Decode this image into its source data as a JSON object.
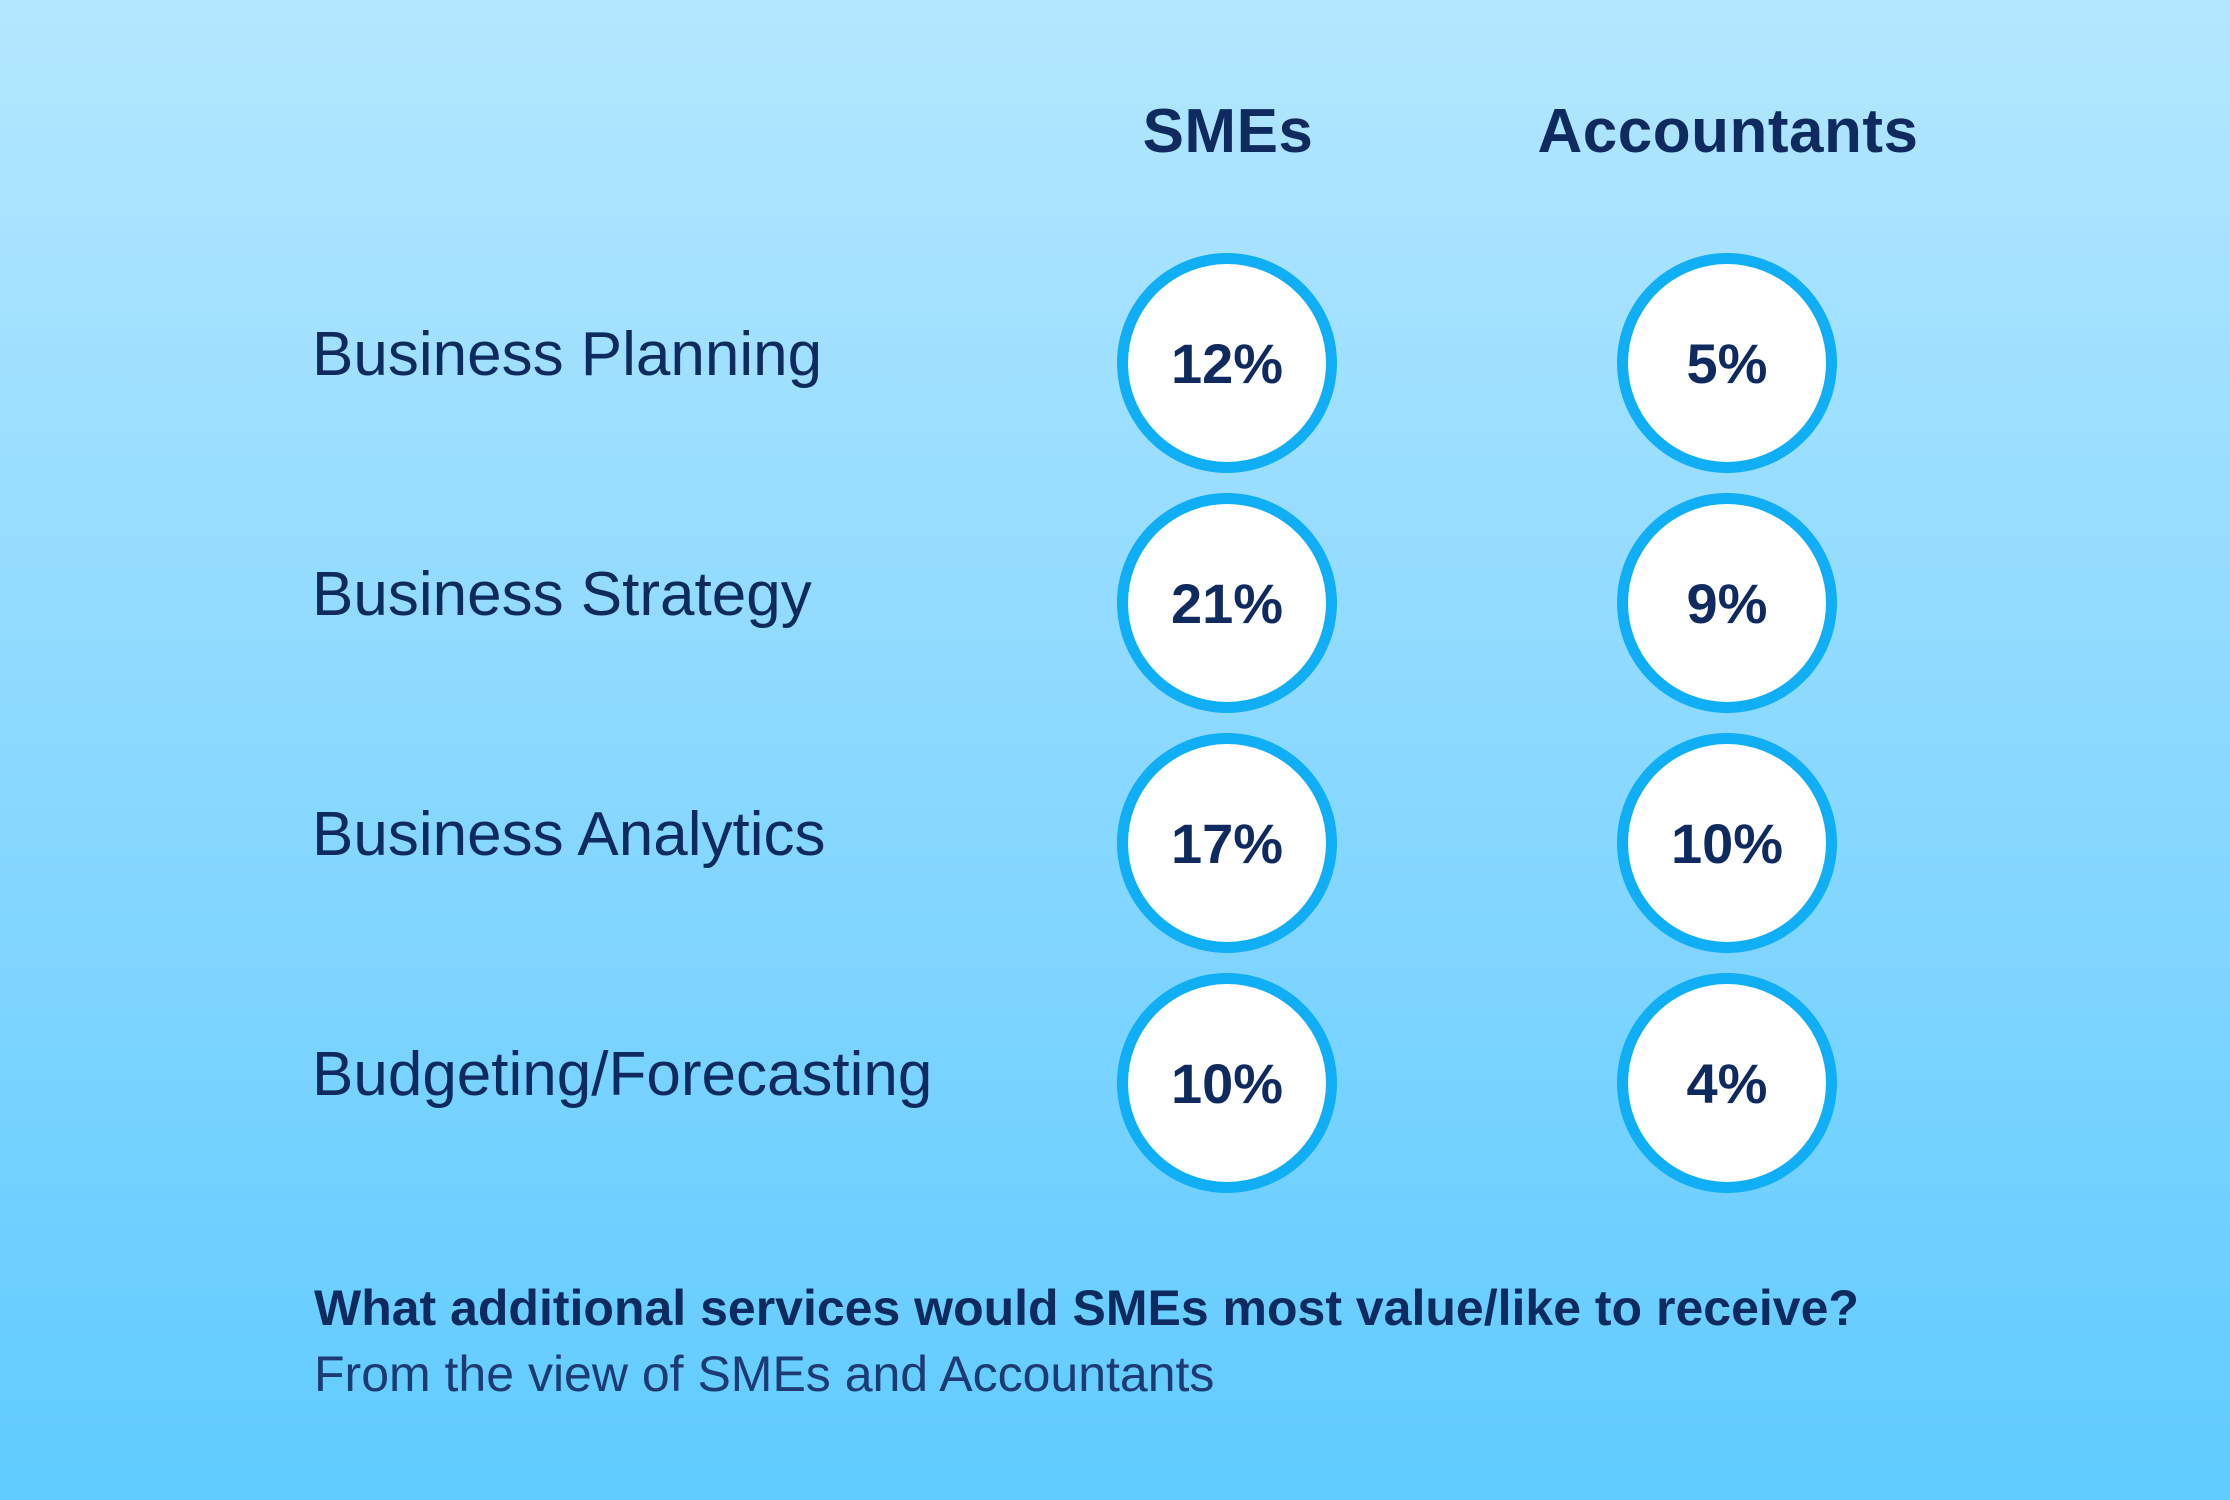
{
  "chart_data": {
    "type": "table",
    "title": "What additional services would SMEs most value/like to receive?",
    "subtitle": "From the view of SMEs and Accountants",
    "columns": [
      "SMEs",
      "Accountants"
    ],
    "categories": [
      "Business Planning",
      "Business Strategy",
      "Business Analytics",
      "Budgeting/Forecasting"
    ],
    "series": [
      {
        "name": "SMEs",
        "values": [
          12,
          21,
          17,
          10
        ],
        "labels": [
          "12%",
          "21%",
          "17%",
          "10%"
        ]
      },
      {
        "name": "Accountants",
        "values": [
          5,
          9,
          10,
          4
        ],
        "labels": [
          "5%",
          "9%",
          "10%",
          "4%"
        ]
      }
    ],
    "unit": "%"
  },
  "colors": {
    "text": "#0f2a5f",
    "circle_border": "#10aef5",
    "circle_fill": "#ffffff",
    "background_top": "#b3e7ff",
    "background_bottom": "#5fcbff"
  }
}
